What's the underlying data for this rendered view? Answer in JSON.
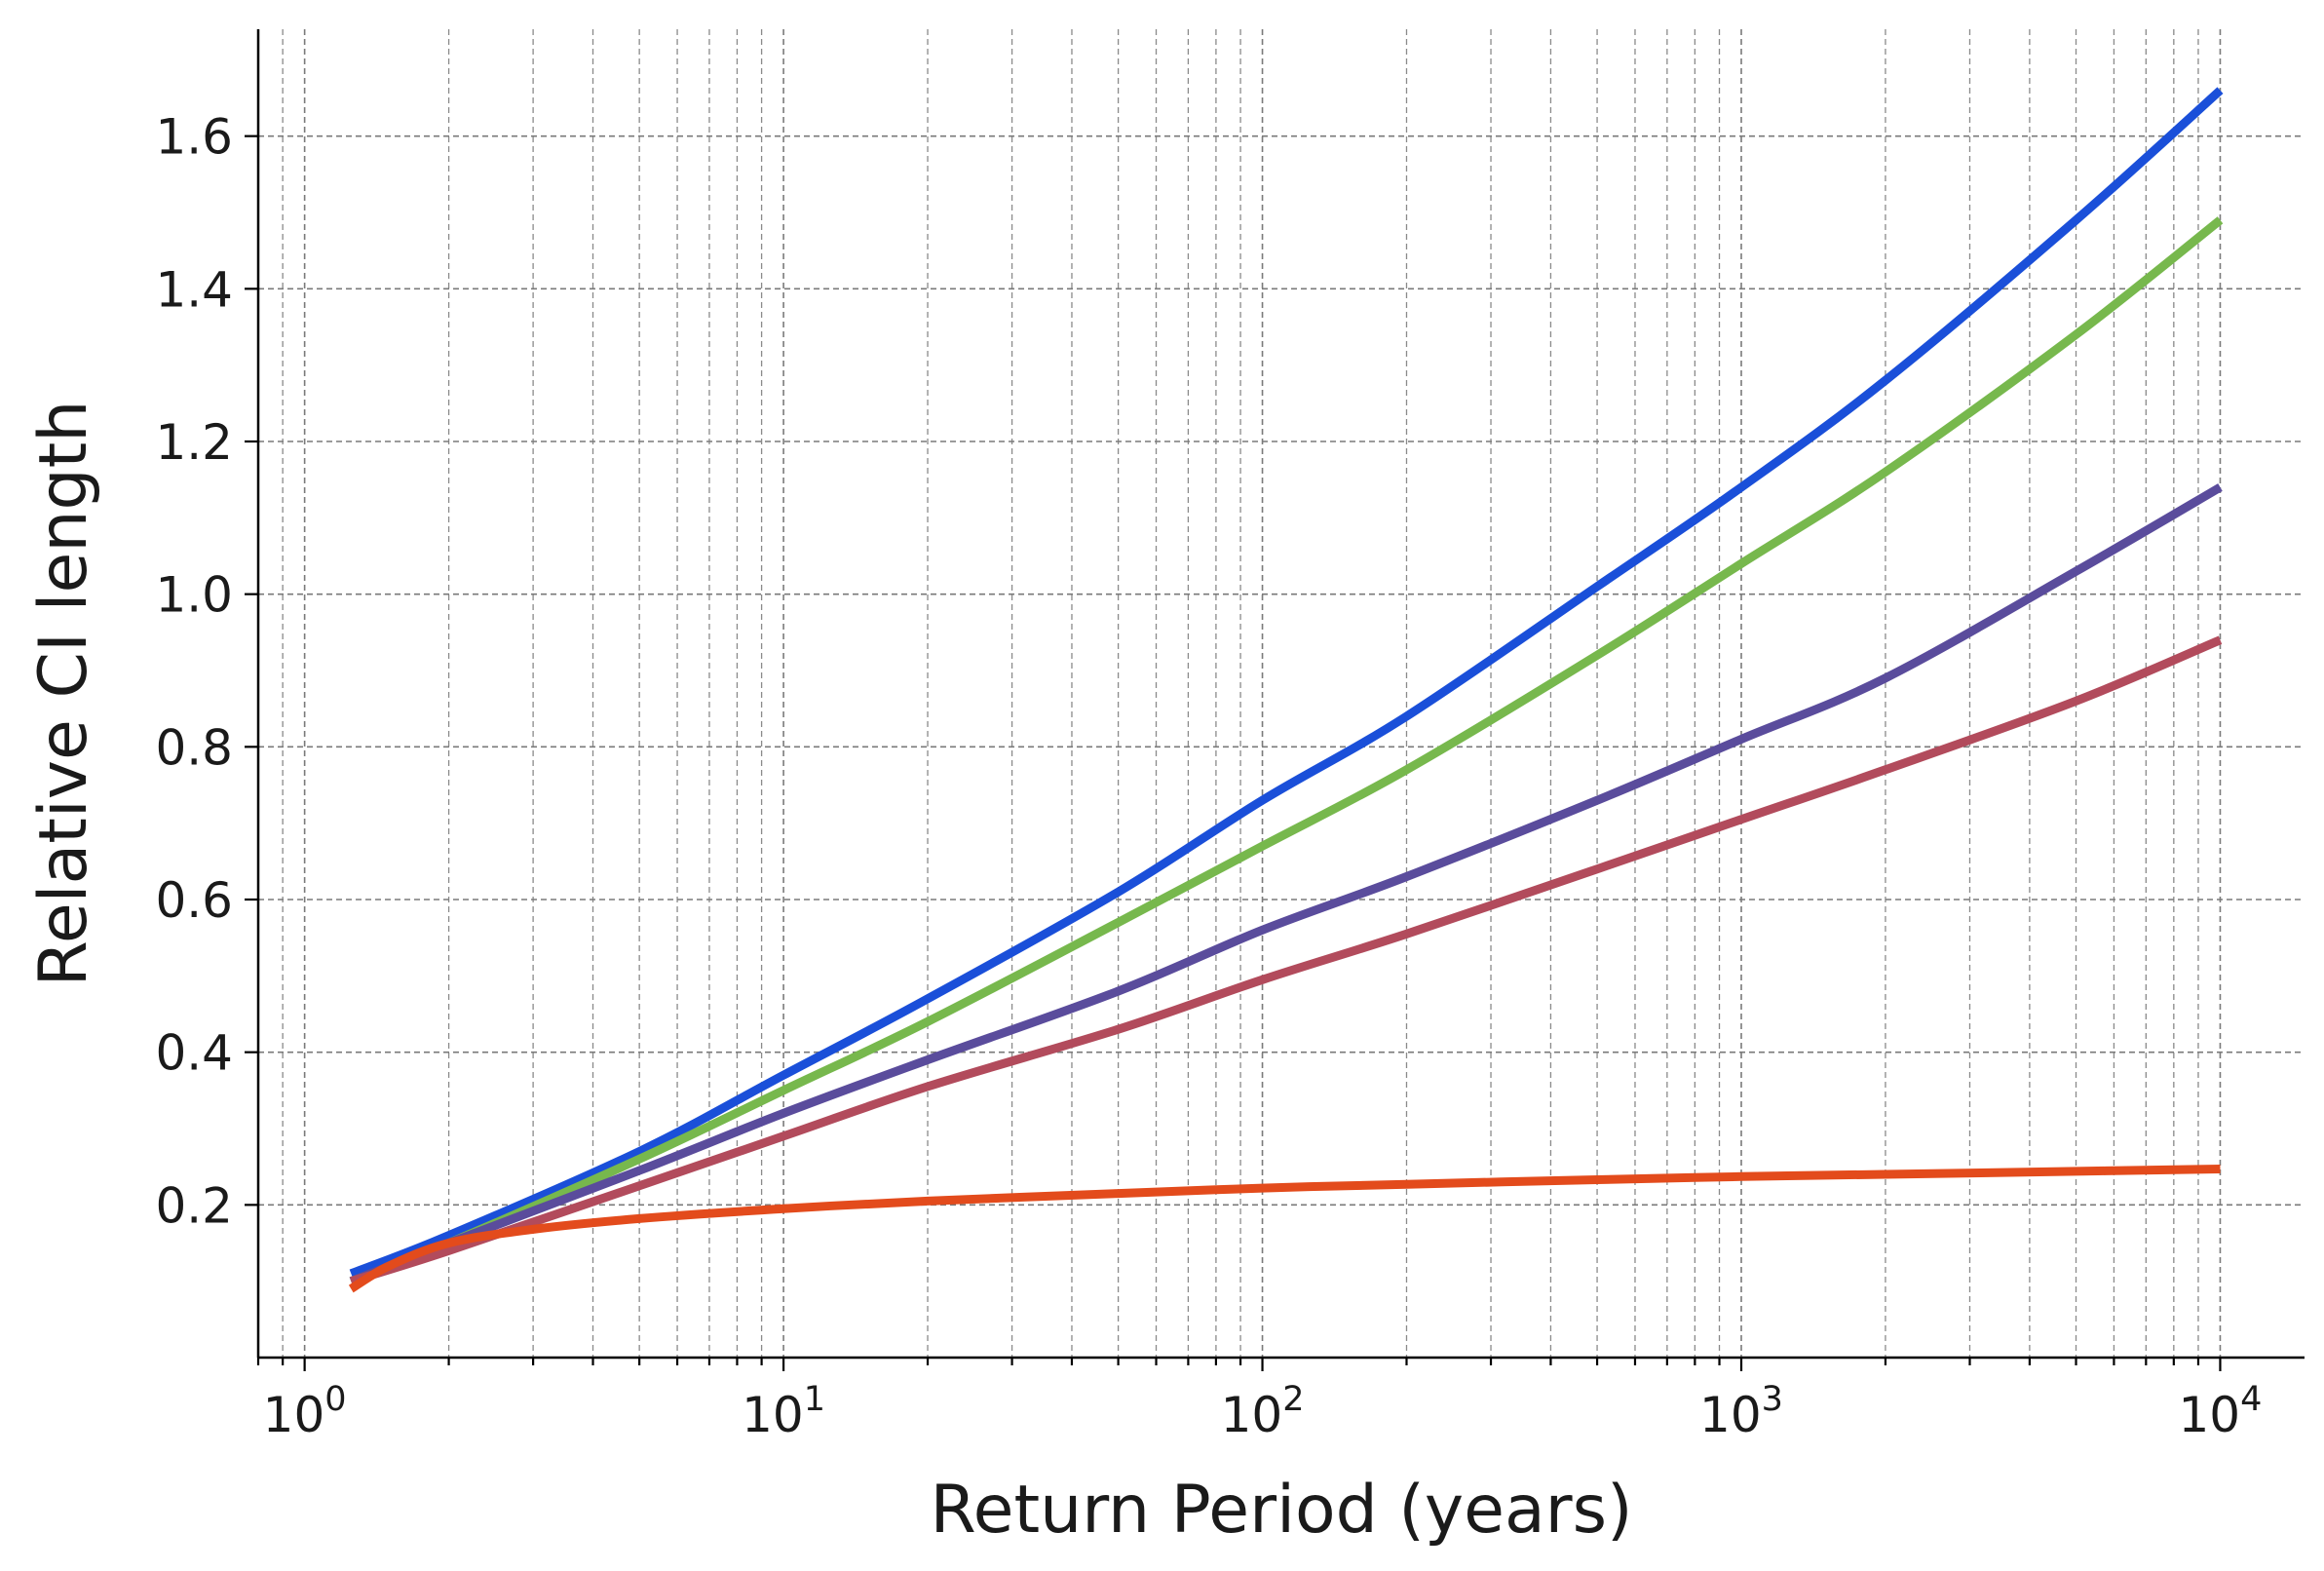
{
  "chart_data": {
    "type": "line",
    "title": "",
    "xlabel": "Return Period (years)",
    "ylabel": "Relative CI length",
    "xscale": "log",
    "xlim": [
      0.8,
      15000
    ],
    "ylim": [
      0.0,
      1.74
    ],
    "grid": true,
    "legend": "none",
    "xticks": [
      {
        "base": "10",
        "exp": "0",
        "value": 1
      },
      {
        "base": "10",
        "exp": "1",
        "value": 10
      },
      {
        "base": "10",
        "exp": "2",
        "value": 100
      },
      {
        "base": "10",
        "exp": "3",
        "value": 1000
      },
      {
        "base": "10",
        "exp": "4",
        "value": 10000
      }
    ],
    "yticks": [
      "0.2",
      "0.4",
      "0.6",
      "0.8",
      "1.0",
      "1.2",
      "1.4",
      "1.6"
    ],
    "series": [
      {
        "color": "#1a4fd9",
        "points": [
          [
            1.25,
            0.11
          ],
          [
            2,
            0.16
          ],
          [
            5,
            0.27
          ],
          [
            10,
            0.37
          ],
          [
            20,
            0.47
          ],
          [
            50,
            0.61
          ],
          [
            100,
            0.73
          ],
          [
            200,
            0.84
          ],
          [
            500,
            1.01
          ],
          [
            1000,
            1.14
          ],
          [
            2000,
            1.28
          ],
          [
            5000,
            1.49
          ],
          [
            10000,
            1.66
          ]
        ]
      },
      {
        "color": "#77b84d",
        "points": [
          [
            1.25,
            0.1
          ],
          [
            2,
            0.15
          ],
          [
            5,
            0.26
          ],
          [
            10,
            0.35
          ],
          [
            20,
            0.44
          ],
          [
            50,
            0.57
          ],
          [
            100,
            0.67
          ],
          [
            200,
            0.77
          ],
          [
            500,
            0.92
          ],
          [
            1000,
            1.04
          ],
          [
            2000,
            1.16
          ],
          [
            5000,
            1.34
          ],
          [
            10000,
            1.49
          ]
        ]
      },
      {
        "color": "#5a4c9c",
        "points": [
          [
            1.25,
            0.1
          ],
          [
            2,
            0.15
          ],
          [
            5,
            0.245
          ],
          [
            10,
            0.32
          ],
          [
            20,
            0.39
          ],
          [
            50,
            0.48
          ],
          [
            100,
            0.56
          ],
          [
            200,
            0.63
          ],
          [
            500,
            0.73
          ],
          [
            1000,
            0.81
          ],
          [
            2000,
            0.89
          ],
          [
            5000,
            1.03
          ],
          [
            10000,
            1.14
          ]
        ]
      },
      {
        "color": "#b24b5c",
        "points": [
          [
            1.25,
            0.1
          ],
          [
            2,
            0.14
          ],
          [
            5,
            0.225
          ],
          [
            10,
            0.29
          ],
          [
            20,
            0.355
          ],
          [
            50,
            0.43
          ],
          [
            100,
            0.495
          ],
          [
            200,
            0.555
          ],
          [
            500,
            0.64
          ],
          [
            1000,
            0.705
          ],
          [
            2000,
            0.77
          ],
          [
            5000,
            0.86
          ],
          [
            10000,
            0.94
          ]
        ]
      },
      {
        "color": "#e34b1c",
        "points": [
          [
            1.25,
            0.09
          ],
          [
            1.5,
            0.12
          ],
          [
            2,
            0.15
          ],
          [
            3,
            0.168
          ],
          [
            5,
            0.182
          ],
          [
            10,
            0.195
          ],
          [
            20,
            0.205
          ],
          [
            50,
            0.215
          ],
          [
            100,
            0.222
          ],
          [
            200,
            0.227
          ],
          [
            500,
            0.233
          ],
          [
            1000,
            0.237
          ],
          [
            2000,
            0.24
          ],
          [
            5000,
            0.244
          ],
          [
            10000,
            0.247
          ]
        ]
      }
    ]
  }
}
